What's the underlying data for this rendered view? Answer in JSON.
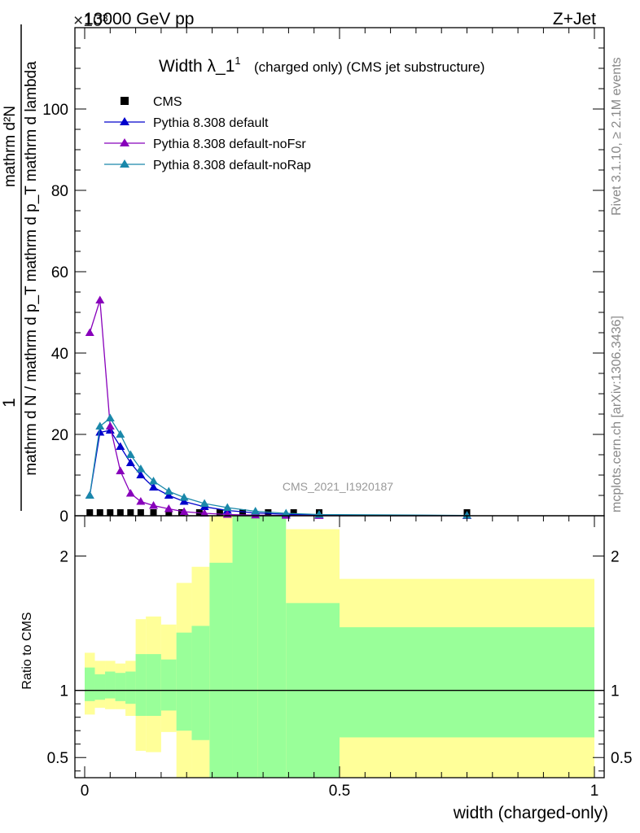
{
  "header": {
    "left": "13000 GeV pp",
    "right": "Z+Jet",
    "exponent": "×10³",
    "side_top": "Rivet 3.1.10, ≥ 2.1M events",
    "side_bottom": "mcplots.cern.ch [arXiv:1306.3436]",
    "watermark": "CMS_2021_I1920187"
  },
  "chart_data": [
    {
      "type": "line",
      "title": "Width λ_1",
      "title_sup": "1",
      "subtitle": "(charged only) (CMS jet substructure)",
      "ylabel_num": "1",
      "ylabel_den": "mathrm d N / mathrm d p_T mathrm d p_T mathrm d lambda",
      "ylabel_den2": "mathrm d²N",
      "ylim": [
        0,
        120
      ],
      "yticks": [
        0,
        20,
        40,
        60,
        80,
        100
      ],
      "xlim": [
        0,
        1
      ],
      "series": [
        {
          "name": "CMS",
          "color": "#000000",
          "marker": "square",
          "x": [
            0.01,
            0.03,
            0.05,
            0.07,
            0.09,
            0.11,
            0.135,
            0.165,
            0.19,
            0.225,
            0.265,
            0.31,
            0.36,
            0.41,
            0.46,
            0.75
          ],
          "y": [
            0.2,
            0.2,
            0.2,
            0.2,
            0.2,
            0.2,
            0.2,
            0.2,
            0.2,
            0.2,
            0.2,
            0.2,
            0.2,
            0.2,
            0.2,
            0.2
          ]
        },
        {
          "name": "Pythia 8.308 default",
          "color": "#0000cc",
          "marker": "triangle",
          "x": [
            0.01,
            0.03,
            0.05,
            0.07,
            0.09,
            0.11,
            0.135,
            0.165,
            0.195,
            0.235,
            0.28,
            0.335,
            0.395,
            0.46,
            0.75
          ],
          "y": [
            5,
            20.5,
            21,
            17,
            13,
            10,
            7,
            5,
            3.5,
            2.2,
            1.3,
            0.7,
            0.35,
            0.2,
            0.05
          ]
        },
        {
          "name": "Pythia 8.308 default-noFsr",
          "color": "#8800bb",
          "marker": "triangle",
          "x": [
            0.01,
            0.03,
            0.05,
            0.07,
            0.09,
            0.11,
            0.135,
            0.165,
            0.195,
            0.235,
            0.28,
            0.335,
            0.395,
            0.46,
            0.75
          ],
          "y": [
            45,
            53,
            22,
            11,
            5.5,
            3.5,
            2.5,
            1.7,
            1.0,
            0.6,
            0.3,
            0.15,
            0.07,
            0.03,
            0.01
          ]
        },
        {
          "name": "Pythia 8.308 default-noRap",
          "color": "#1a88aa",
          "marker": "triangle",
          "x": [
            0.01,
            0.03,
            0.05,
            0.07,
            0.09,
            0.11,
            0.135,
            0.165,
            0.195,
            0.235,
            0.28,
            0.335,
            0.395,
            0.46,
            0.75
          ],
          "y": [
            5,
            22,
            24,
            20,
            15,
            11.5,
            8.5,
            6,
            4.5,
            3,
            2,
            1.1,
            0.6,
            0.3,
            0.08
          ]
        }
      ]
    },
    {
      "type": "area",
      "ylabel": "Ratio to CMS",
      "xlabel": "width (charged-only)",
      "xlim": [
        0,
        1
      ],
      "ylim": [
        0.35,
        2.3
      ],
      "yticks": [
        0.5,
        1,
        2
      ],
      "ytick_labels": [
        "0.5",
        "1",
        "2"
      ],
      "xticks": [
        0,
        0.5,
        1
      ],
      "xtick_labels": [
        "0",
        "0.5",
        "1"
      ],
      "reference": 1,
      "bands": {
        "edges": [
          0.0,
          0.02,
          0.04,
          0.06,
          0.08,
          0.1,
          0.12,
          0.15,
          0.18,
          0.21,
          0.245,
          0.29,
          0.34,
          0.395,
          0.5,
          1.0
        ],
        "inner_color": "#99ff99",
        "outer_color": "#ffff99",
        "yellow_lo": [
          0.82,
          0.87,
          0.86,
          0.86,
          0.81,
          0.55,
          0.54,
          0.69,
          0.2,
          0.2,
          0.2,
          0.2,
          0.2,
          0.2,
          0.2
        ],
        "yellow_hi": [
          1.28,
          1.22,
          1.22,
          1.2,
          1.22,
          1.53,
          1.55,
          1.49,
          1.8,
          1.92,
          2.5,
          2.5,
          2.5,
          2.2,
          1.83
        ],
        "green_lo": [
          0.92,
          0.93,
          0.94,
          0.92,
          0.9,
          0.81,
          0.81,
          0.85,
          0.7,
          0.63,
          0.2,
          0.2,
          0.2,
          0.2,
          0.65
        ],
        "green_hi": [
          1.17,
          1.12,
          1.14,
          1.13,
          1.14,
          1.27,
          1.27,
          1.23,
          1.43,
          1.48,
          1.95,
          2.5,
          2.5,
          1.65,
          1.47
        ]
      }
    }
  ]
}
